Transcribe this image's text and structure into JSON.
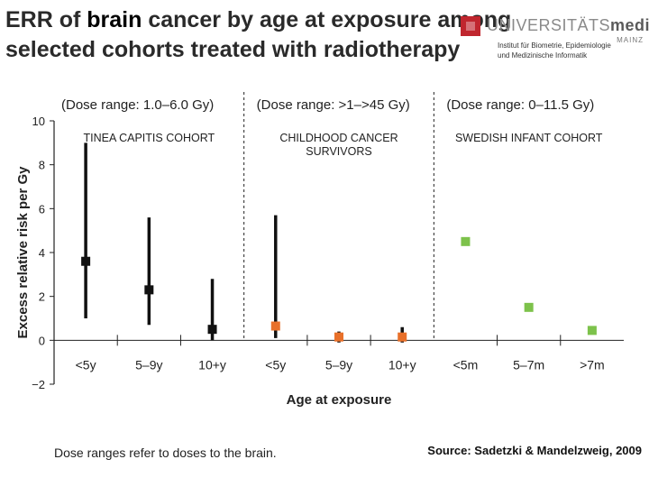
{
  "slide": {
    "title_part1": "ERR of ",
    "title_highlight": "brain",
    "title_part2": " cancer by age at exposure among selected cohorts treated with radiotherapy",
    "caption": "Dose ranges refer to doses to the brain.",
    "source": "Source: Sadetzki & Mandelzweig, 2009"
  },
  "logo": {
    "university": "UNIVERSITÄTS",
    "medizin": "medizin.",
    "city": "MAINZ",
    "institute_line1": "Institut für Biometrie, Epidemiologie",
    "institute_line2": "und Medizinische Informatik"
  },
  "chart_data": {
    "type": "scatter",
    "ylabel": "Excess relative risk per Gy",
    "xlabel": "Age at exposure",
    "ylim": [
      -2,
      10
    ],
    "yticks": [
      "−2",
      "0",
      "2",
      "4",
      "6",
      "8",
      "10"
    ],
    "grid": false,
    "panels": [
      {
        "dose_label": "(Dose range: 1.0–6.0 Gy)",
        "cohort_label_1": "TINEA CAPITIS COHORT",
        "cohort_label_2": "",
        "categories": [
          "<5y",
          "5–9y",
          "10+y"
        ],
        "points": [
          {
            "category": "<5y",
            "y": 3.6,
            "lower": 1.0,
            "upper": 9.0,
            "color": "#111111"
          },
          {
            "category": "5–9y",
            "y": 2.3,
            "lower": 0.7,
            "upper": 5.6,
            "color": "#111111"
          },
          {
            "category": "10+y",
            "y": 0.5,
            "lower": 0.0,
            "upper": 2.8,
            "color": "#111111"
          }
        ]
      },
      {
        "dose_label": "(Dose range: >1–>45 Gy)",
        "cohort_label_1": "CHILDHOOD CANCER",
        "cohort_label_2": "SURVIVORS",
        "categories": [
          "<5y",
          "5–9y",
          "10+y"
        ],
        "points": [
          {
            "category": "<5y",
            "y": 0.65,
            "lower": 0.1,
            "upper": 5.7,
            "color": "#e8702a"
          },
          {
            "category": "5–9y",
            "y": 0.15,
            "lower": -0.1,
            "upper": 0.4,
            "color": "#e8702a"
          },
          {
            "category": "10+y",
            "y": 0.15,
            "lower": -0.1,
            "upper": 0.6,
            "color": "#e8702a"
          }
        ]
      },
      {
        "dose_label": "(Dose range: 0–11.5 Gy)",
        "cohort_label_1": "SWEDISH INFANT COHORT",
        "cohort_label_2": "",
        "categories": [
          "<5m",
          "5–7m",
          ">7m"
        ],
        "points": [
          {
            "category": "<5m",
            "y": 4.5,
            "color": "#7dc24b"
          },
          {
            "category": "5–7m",
            "y": 1.5,
            "color": "#7dc24b"
          },
          {
            "category": ">7m",
            "y": 0.45,
            "color": "#7dc24b"
          }
        ]
      }
    ]
  }
}
